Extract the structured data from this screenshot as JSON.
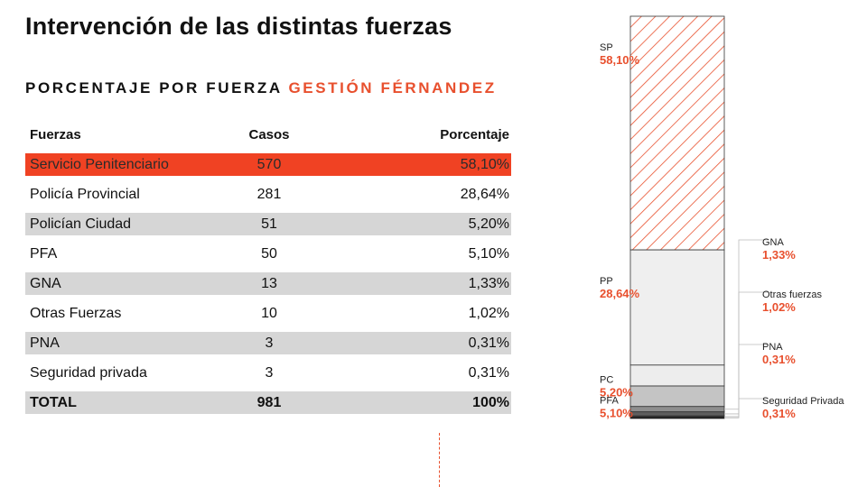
{
  "page": {
    "title": "Intervención de las distintas fuerzas",
    "subtitle_main": "PORCENTAJE POR FUERZA",
    "subtitle_accent": "GESTIÓN FÉRNANDEZ"
  },
  "table": {
    "headers": [
      "Fuerzas",
      "Casos",
      "Porcentaje"
    ],
    "rows": [
      {
        "fuerza": "Servicio Penitenciario",
        "casos": "570",
        "porcentaje": "58,10%"
      },
      {
        "fuerza": "Policía Provincial",
        "casos": "281",
        "porcentaje": "28,64%"
      },
      {
        "fuerza": "Policían Ciudad",
        "casos": "51",
        "porcentaje": "5,20%"
      },
      {
        "fuerza": "PFA",
        "casos": "50",
        "porcentaje": "5,10%"
      },
      {
        "fuerza": "GNA",
        "casos": "13",
        "porcentaje": "1,33%"
      },
      {
        "fuerza": "Otras Fuerzas",
        "casos": "10",
        "porcentaje": "1,02%"
      },
      {
        "fuerza": "PNA",
        "casos": "3",
        "porcentaje": "0,31%"
      },
      {
        "fuerza": "Seguridad privada",
        "casos": "3",
        "porcentaje": "0,31%"
      }
    ],
    "total": {
      "fuerza": "TOTAL",
      "casos": "981",
      "porcentaje": "100%"
    }
  },
  "colors": {
    "accent": "#e8502e",
    "highlight_row": "#f04223",
    "gray_row": "#d6d6d6"
  },
  "chart_data": {
    "type": "bar",
    "stacked": true,
    "title": "",
    "ylim": [
      0,
      100
    ],
    "series": [
      {
        "name": "SP",
        "value": 58.1,
        "label": "58,10%",
        "fill": "hatch",
        "label_side": "left"
      },
      {
        "name": "PP",
        "value": 28.64,
        "label": "28,64%",
        "fill": "#efefef",
        "label_side": "left"
      },
      {
        "name": "PC",
        "value": 5.2,
        "label": "5,20%",
        "fill": "#ededed",
        "label_side": "left"
      },
      {
        "name": "PFA",
        "value": 5.1,
        "label": "5,10%",
        "fill": "#c4c4c4",
        "label_side": "left"
      },
      {
        "name": "GNA",
        "value": 1.33,
        "label": "1,33%",
        "fill": "#8e8e8e",
        "label_side": "right"
      },
      {
        "name": "Otras fuerzas",
        "value": 1.02,
        "label": "1,02%",
        "fill": "#5e5e5e",
        "label_side": "right"
      },
      {
        "name": "PNA",
        "value": 0.31,
        "label": "0,31%",
        "fill": "#2d2d2d",
        "label_side": "right"
      },
      {
        "name": "Seguridad Privada",
        "value": 0.31,
        "label": "0,31%",
        "fill": "#000000",
        "label_side": "right"
      }
    ]
  }
}
